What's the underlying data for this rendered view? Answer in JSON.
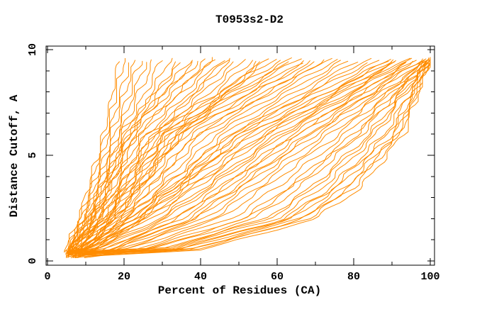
{
  "chart_data": {
    "type": "line",
    "title": "T0953s2-D2",
    "xlabel": "Percent of Residues (CA)",
    "ylabel": "Distance Cutoff, A",
    "xlim": [
      0,
      100
    ],
    "ylim": [
      0,
      10
    ],
    "grid": false,
    "legend": "none",
    "x_major_ticks": [
      0,
      20,
      40,
      60,
      80,
      100
    ],
    "x_minor_ticks": [
      10,
      30,
      50,
      70,
      90
    ],
    "y_major_ticks": [
      0,
      5,
      10
    ],
    "y_minor_ticks": [
      1,
      2,
      3,
      4,
      6,
      7,
      8,
      9
    ],
    "curve_color": "#ff8c00",
    "axis_color": "#000000",
    "series_note": "One cumulative curve per predicted model; each curve lists percent of residues (x) at distance cutoffs y = 0.5, 2, 3.5, 6 and 9.6 A",
    "anchor_cutoffs": [
      0.5,
      2,
      3.5,
      6,
      9.6
    ],
    "curves": [
      [
        4.8,
        8,
        10.5,
        14.5,
        18.5
      ],
      [
        5,
        8.4,
        11,
        15,
        20
      ],
      [
        5.2,
        8.8,
        11.6,
        15.8,
        21.5
      ],
      [
        5.5,
        9.2,
        12.2,
        16.6,
        23
      ],
      [
        5.2,
        9.6,
        12.8,
        17.4,
        24.5
      ],
      [
        5.8,
        10,
        13.4,
        18.2,
        26
      ],
      [
        6,
        10.5,
        14,
        19,
        28
      ],
      [
        6.2,
        11,
        14.8,
        20,
        30
      ],
      [
        6.5,
        12,
        15.8,
        21.2,
        32
      ],
      [
        6.8,
        12.5,
        16.4,
        22.4,
        34
      ],
      [
        5,
        10,
        13.5,
        19,
        36
      ],
      [
        5.4,
        11,
        14.5,
        20.5,
        38
      ],
      [
        5.8,
        11.5,
        15.2,
        21.5,
        40
      ],
      [
        6,
        12,
        16,
        23,
        42
      ],
      [
        6.4,
        13,
        17,
        24.5,
        44
      ],
      [
        6.8,
        13.5,
        18,
        26,
        46
      ],
      [
        7,
        14,
        19,
        27.5,
        48
      ],
      [
        7.4,
        15,
        20,
        29,
        50
      ],
      [
        7.8,
        15.5,
        21,
        30.5,
        52
      ],
      [
        8,
        16,
        22,
        32,
        54
      ],
      [
        8.4,
        17,
        23,
        33.5,
        56
      ],
      [
        8.8,
        18,
        24.5,
        35,
        58
      ],
      [
        7,
        14.5,
        19.5,
        28,
        47
      ],
      [
        6.2,
        12.5,
        16.5,
        23.5,
        43
      ],
      [
        5.6,
        11.2,
        14.8,
        21,
        39
      ],
      [
        8.6,
        17.5,
        24,
        34,
        57
      ],
      [
        6,
        13,
        18,
        26,
        60
      ],
      [
        6.5,
        14,
        19,
        28,
        62
      ],
      [
        7,
        15,
        20.5,
        30,
        64
      ],
      [
        7.5,
        16,
        22,
        32,
        66
      ],
      [
        8,
        17,
        23.5,
        34,
        68
      ],
      [
        8.5,
        18,
        25,
        36,
        70
      ],
      [
        9,
        19,
        26.5,
        38,
        72
      ],
      [
        9.5,
        20,
        28,
        40,
        74
      ],
      [
        10,
        21,
        29.5,
        42,
        76
      ],
      [
        10.5,
        22,
        31,
        44,
        78
      ],
      [
        11,
        23,
        32.5,
        46,
        80
      ],
      [
        11.5,
        24,
        34,
        48,
        82
      ],
      [
        9.2,
        19.5,
        27,
        39,
        73
      ],
      [
        8.2,
        17.5,
        24,
        35,
        69
      ],
      [
        7.2,
        15.5,
        21,
        31,
        65
      ],
      [
        12,
        25,
        35.5,
        50,
        84
      ],
      [
        8,
        20,
        30,
        48,
        86
      ],
      [
        8.5,
        21,
        32,
        50,
        88
      ],
      [
        9,
        22,
        33,
        52,
        90
      ],
      [
        9.5,
        24,
        35,
        54,
        91
      ],
      [
        10,
        25,
        37,
        56,
        92
      ],
      [
        11,
        27,
        39,
        58,
        93
      ],
      [
        12,
        29,
        41,
        60,
        94
      ],
      [
        13,
        31,
        43,
        62,
        95
      ],
      [
        14,
        33,
        45,
        64,
        96
      ],
      [
        15,
        35,
        47,
        66,
        97
      ],
      [
        16,
        37,
        49,
        68,
        98
      ],
      [
        17,
        39,
        51,
        70,
        99
      ],
      [
        18,
        41,
        53,
        72,
        100
      ],
      [
        19,
        43,
        55,
        74,
        100
      ],
      [
        12.5,
        30,
        42,
        61,
        94.5
      ],
      [
        10.5,
        26,
        38,
        57,
        92.5
      ],
      [
        9.2,
        23,
        34,
        53,
        90.5
      ],
      [
        16.5,
        38,
        50,
        69,
        98.5
      ],
      [
        14.5,
        34,
        46,
        65,
        96.5
      ],
      [
        20,
        45,
        57,
        76,
        100
      ],
      [
        22,
        48,
        60,
        78,
        100
      ],
      [
        24,
        51,
        63,
        80,
        100
      ],
      [
        26,
        54,
        66,
        82,
        100
      ],
      [
        28,
        57,
        69,
        84,
        100
      ],
      [
        30,
        60,
        72,
        86,
        100
      ],
      [
        32,
        62,
        74,
        88,
        100
      ],
      [
        34,
        64,
        76,
        90,
        100
      ],
      [
        36,
        66,
        78,
        91,
        100
      ],
      [
        38,
        68,
        80,
        92,
        100
      ],
      [
        40,
        70,
        82,
        93,
        100
      ],
      [
        25,
        52,
        64,
        81,
        100
      ],
      [
        29,
        58,
        70,
        85,
        100
      ],
      [
        33,
        63,
        75,
        89,
        100
      ],
      [
        37,
        67,
        79,
        91.5,
        100
      ]
    ]
  }
}
